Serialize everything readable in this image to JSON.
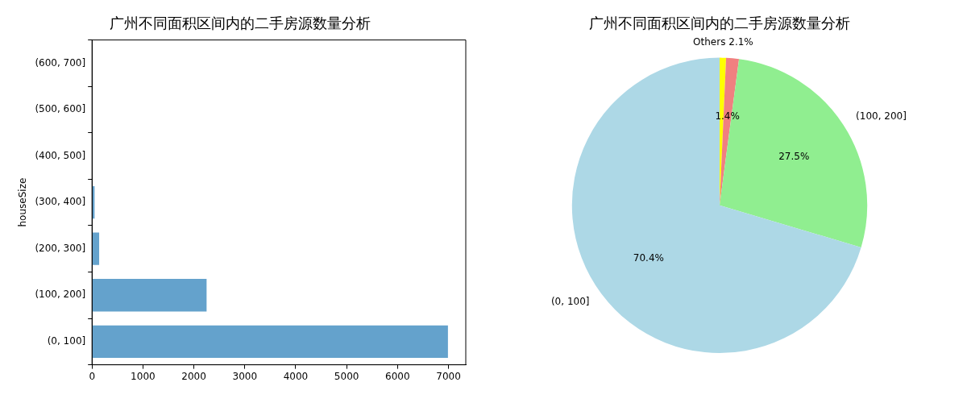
{
  "chart_data": [
    {
      "type": "bar",
      "title": "广州不同面积区间内的二手房源数量分析",
      "ylabel": "houseSize",
      "orientation": "horizontal",
      "categories": [
        "(600, 700]",
        "(500, 600]",
        "(400, 500]",
        "(300, 400]",
        "(200, 300]",
        "(100, 200]",
        "(0, 100]"
      ],
      "values": [
        0,
        0,
        0,
        50,
        140,
        2250,
        6990
      ],
      "color": "#64a2cc",
      "xlim": [
        0,
        7340
      ],
      "xticks": [
        0,
        1000,
        2000,
        3000,
        4000,
        5000,
        6000,
        7000
      ],
      "grid": false,
      "legend": false
    },
    {
      "type": "pie",
      "title": "广州不同面积区间内的二手房源数量分析",
      "categories": [
        "(0, 100]",
        "(100, 200]",
        null,
        "Others 2.1%"
      ],
      "values": [
        70.4,
        27.5,
        1.4,
        0.7
      ],
      "colors": [
        "#add8e6",
        "#90ee90",
        "#f08080",
        "#ffff00"
      ],
      "value_labels": [
        "70.4%",
        "27.5%",
        "1.4%",
        null
      ],
      "legend": false
    }
  ]
}
